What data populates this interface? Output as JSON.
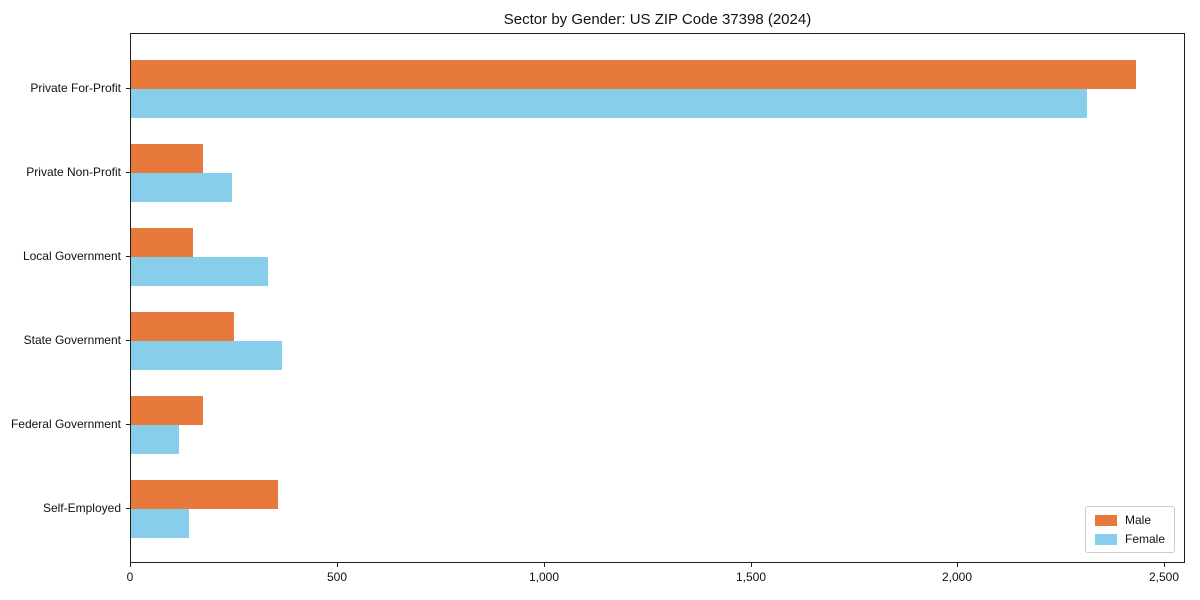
{
  "chart_data": {
    "type": "bar",
    "orientation": "horizontal",
    "title": "Sector by Gender: US ZIP Code 37398 (2024)",
    "categories": [
      "Private For-Profit",
      "Private Non-Profit",
      "Local Government",
      "State Government",
      "Federal Government",
      "Self-Employed"
    ],
    "series": [
      {
        "name": "Male",
        "color": "#e8793d",
        "values": [
          2430,
          175,
          150,
          250,
          175,
          355
        ]
      },
      {
        "name": "Female",
        "color": "#87ceeb",
        "values": [
          2310,
          245,
          330,
          365,
          115,
          140
        ]
      }
    ],
    "xlabel": "",
    "ylabel": "",
    "xlim": [
      0,
      2550
    ],
    "x_ticks": [
      0,
      500,
      1000,
      1500,
      2000,
      2500
    ],
    "x_tick_labels": [
      "0",
      "500",
      "1,000",
      "1,500",
      "2,000",
      "2,500"
    ],
    "grid": false,
    "legend_position": "lower right",
    "frame_color": "#1f1f1f",
    "background_color": "#ffffff"
  }
}
